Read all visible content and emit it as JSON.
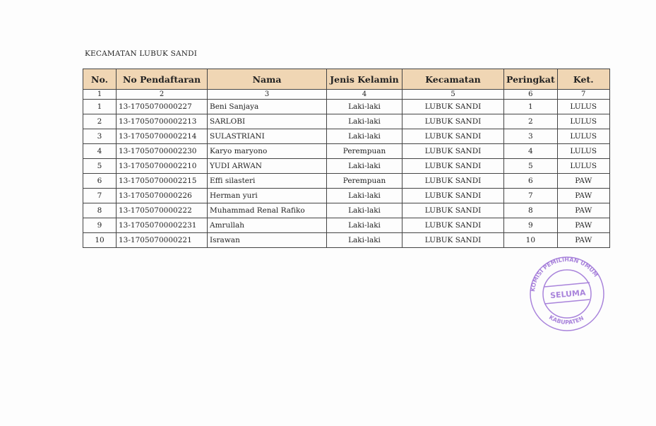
{
  "title": "KECAMATAN LUBUK SANDI",
  "headers": [
    "No.",
    "No Pendaftaran",
    "Nama",
    "Jenis Kelamin",
    "Kecamatan",
    "Peringkat",
    "Ket."
  ],
  "column_numbers": [
    "1",
    "2",
    "3",
    "4",
    "5",
    "6",
    "7"
  ],
  "rows": [
    [
      "1",
      "13-1705070000227",
      "Beni Sanjaya",
      "Laki-laki",
      "LUBUK SANDI",
      "1",
      "LULUS"
    ],
    [
      "2",
      "13-17050700002213",
      "SARLOBI",
      "Laki-laki",
      "LUBUK SANDI",
      "2",
      "LULUS"
    ],
    [
      "3",
      "13-17050700002214",
      "SULASTRIANI",
      "Laki-laki",
      "LUBUK SANDI",
      "3",
      "LULUS"
    ],
    [
      "4",
      "13-17050700002230",
      "Karyo maryono",
      "Perempuan",
      "LUBUK SANDI",
      "4",
      "LULUS"
    ],
    [
      "5",
      "13-17050700002210",
      "YUDI ARWAN",
      "Laki-laki",
      "LUBUK SANDI",
      "5",
      "LULUS"
    ],
    [
      "6",
      "13-17050700002215",
      "Effi silasteri",
      "Perempuan",
      "LUBUK SANDI",
      "6",
      "PAW"
    ],
    [
      "7",
      "13-1705070000226",
      "Herman yuri",
      "Laki-laki",
      "LUBUK SANDI",
      "7",
      "PAW"
    ],
    [
      "8",
      "13-1705070000222",
      "Muhammad Renal Rafiko",
      "Laki-laki",
      "LUBUK SANDI",
      "8",
      "PAW"
    ],
    [
      "9",
      "13-17050700002231",
      "Amrullah",
      "Laki-laki",
      "LUBUK SANDI",
      "9",
      "PAW"
    ],
    [
      "10",
      "13-1705070000221",
      "Israwan",
      "Laki-laki",
      "LUBUK SANDI",
      "10",
      "PAW"
    ]
  ],
  "stamp": {
    "outer_text": "KOMISI PEMILIHAN UMUM",
    "inner_text": "SELUMA",
    "bottom_text": "KABUPATEN",
    "color": "#9b6fd6"
  }
}
